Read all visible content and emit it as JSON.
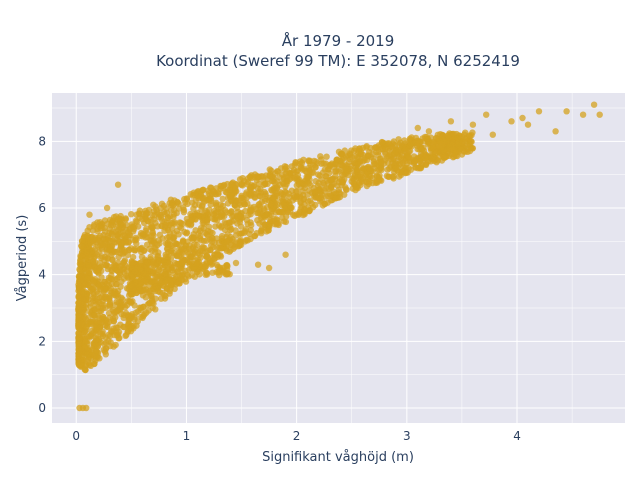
{
  "chart_data": {
    "type": "scatter",
    "title_line1": "År 1979 - 2019",
    "title_line2": "Koordinat (Sweref 99 TM): E 352078, N 6252419",
    "xlabel": "Signifikant våghöjd (m)",
    "ylabel": "Vågperiod (s)",
    "xlim": [
      -0.22,
      4.98
    ],
    "ylim": [
      -0.45,
      9.45
    ],
    "xticks": [
      0,
      1,
      2,
      3,
      4
    ],
    "yticks": [
      0,
      2,
      4,
      6,
      8
    ],
    "grid": true,
    "marker_color": "#D4A21F",
    "marker_opacity": 0.75,
    "background": "#E5E5EF",
    "outliers": [
      {
        "x": 0.03,
        "y": 0.0
      },
      {
        "x": 0.06,
        "y": 0.0
      },
      {
        "x": 0.09,
        "y": 0.0
      },
      {
        "x": 0.38,
        "y": 6.7
      },
      {
        "x": 0.28,
        "y": 6.0
      },
      {
        "x": 0.12,
        "y": 5.8
      },
      {
        "x": 1.18,
        "y": 4.55
      },
      {
        "x": 1.45,
        "y": 4.35
      },
      {
        "x": 1.75,
        "y": 4.2
      },
      {
        "x": 1.9,
        "y": 4.6
      },
      {
        "x": 1.65,
        "y": 4.3
      },
      {
        "x": 2.1,
        "y": 6.9
      },
      {
        "x": 2.55,
        "y": 7.3
      },
      {
        "x": 3.1,
        "y": 8.4
      },
      {
        "x": 3.2,
        "y": 8.3
      },
      {
        "x": 3.4,
        "y": 8.6
      },
      {
        "x": 3.6,
        "y": 8.5
      },
      {
        "x": 3.72,
        "y": 8.8
      },
      {
        "x": 3.78,
        "y": 8.2
      },
      {
        "x": 3.95,
        "y": 8.6
      },
      {
        "x": 4.05,
        "y": 8.7
      },
      {
        "x": 4.2,
        "y": 8.9
      },
      {
        "x": 4.35,
        "y": 8.3
      },
      {
        "x": 4.45,
        "y": 8.9
      },
      {
        "x": 4.6,
        "y": 8.8
      },
      {
        "x": 4.7,
        "y": 9.1
      },
      {
        "x": 4.75,
        "y": 8.8
      },
      {
        "x": 4.1,
        "y": 8.5
      },
      {
        "x": 3.3,
        "y": 8.0
      },
      {
        "x": 2.9,
        "y": 7.2
      }
    ],
    "bands": [
      {
        "x": 0.02,
        "ymin": 1.3,
        "ymax": 3.8
      },
      {
        "x": 0.05,
        "ymin": 1.2,
        "ymax": 5.1
      },
      {
        "x": 0.1,
        "ymin": 1.1,
        "ymax": 5.4
      },
      {
        "x": 0.2,
        "ymin": 1.4,
        "ymax": 5.6
      },
      {
        "x": 0.3,
        "ymin": 1.7,
        "ymax": 5.7
      },
      {
        "x": 0.4,
        "ymin": 2.0,
        "ymax": 5.8
      },
      {
        "x": 0.5,
        "ymin": 2.3,
        "ymax": 5.9
      },
      {
        "x": 0.6,
        "ymin": 2.6,
        "ymax": 6.0
      },
      {
        "x": 0.7,
        "ymin": 2.9,
        "ymax": 6.1
      },
      {
        "x": 0.8,
        "ymin": 3.2,
        "ymax": 6.2
      },
      {
        "x": 0.9,
        "ymin": 3.5,
        "ymax": 6.3
      },
      {
        "x": 1.0,
        "ymin": 3.8,
        "ymax": 6.4
      },
      {
        "x": 1.2,
        "ymin": 4.3,
        "ymax": 6.6
      },
      {
        "x": 1.4,
        "ymin": 4.7,
        "ymax": 6.8
      },
      {
        "x": 1.6,
        "ymin": 5.1,
        "ymax": 7.0
      },
      {
        "x": 1.8,
        "ymin": 5.4,
        "ymax": 7.2
      },
      {
        "x": 2.0,
        "ymin": 5.7,
        "ymax": 7.4
      },
      {
        "x": 2.2,
        "ymin": 6.0,
        "ymax": 7.55
      },
      {
        "x": 2.4,
        "ymin": 6.3,
        "ymax": 7.7
      },
      {
        "x": 2.6,
        "ymin": 6.6,
        "ymax": 7.85
      },
      {
        "x": 2.8,
        "ymin": 6.8,
        "ymax": 8.0
      },
      {
        "x": 3.0,
        "ymin": 7.0,
        "ymax": 8.1
      },
      {
        "x": 3.2,
        "ymin": 7.3,
        "ymax": 8.2
      },
      {
        "x": 3.4,
        "ymin": 7.5,
        "ymax": 8.25
      },
      {
        "x": 3.6,
        "ymin": 7.7,
        "ymax": 8.3
      }
    ],
    "shelf": [
      {
        "x": 0.5,
        "ymin": 3.4,
        "ymax": 4.4
      },
      {
        "x": 0.8,
        "ymin": 3.6,
        "ymax": 4.4
      },
      {
        "x": 1.1,
        "ymin": 3.9,
        "ymax": 4.4
      },
      {
        "x": 1.4,
        "ymin": 4.0,
        "ymax": 4.35
      }
    ]
  }
}
